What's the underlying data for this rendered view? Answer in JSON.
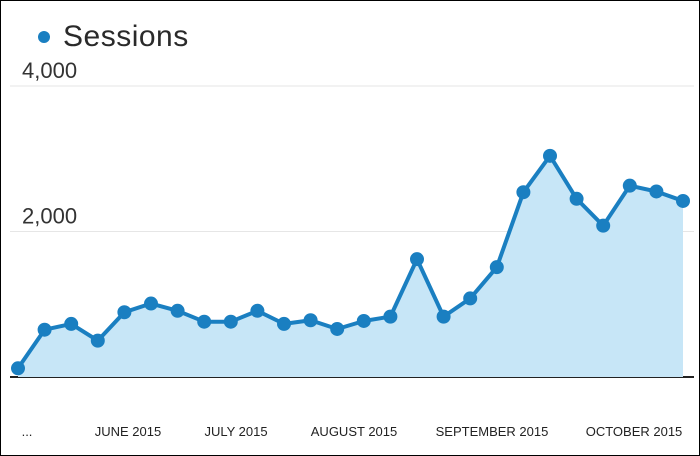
{
  "legend": {
    "label": "Sessions",
    "icon": "circle-marker-icon"
  },
  "colors": {
    "line": "#1a7fc1",
    "area": "#c7e6f7",
    "grid": "#e6e6e6",
    "axis": "#222222"
  },
  "chart_data": {
    "type": "area",
    "title": "",
    "xlabel": "",
    "ylabel": "",
    "ylim": [
      0,
      4000
    ],
    "y_ticks": [
      {
        "value": 2000,
        "label": "2,000"
      },
      {
        "value": 4000,
        "label": "4,000"
      }
    ],
    "x_tick_labels": [
      "...",
      "JUNE 2015",
      "JULY 2015",
      "AUGUST 2015",
      "SEPTEMBER 2015",
      "OCTOBER 2015"
    ],
    "grid": true,
    "legend_position": "top-left",
    "series": [
      {
        "name": "Sessions",
        "values": [
          120,
          650,
          730,
          500,
          890,
          1010,
          910,
          760,
          760,
          910,
          730,
          780,
          660,
          770,
          830,
          1620,
          830,
          1080,
          1510,
          2540,
          3040,
          2450,
          2080,
          2630,
          2550,
          2420
        ]
      }
    ]
  }
}
